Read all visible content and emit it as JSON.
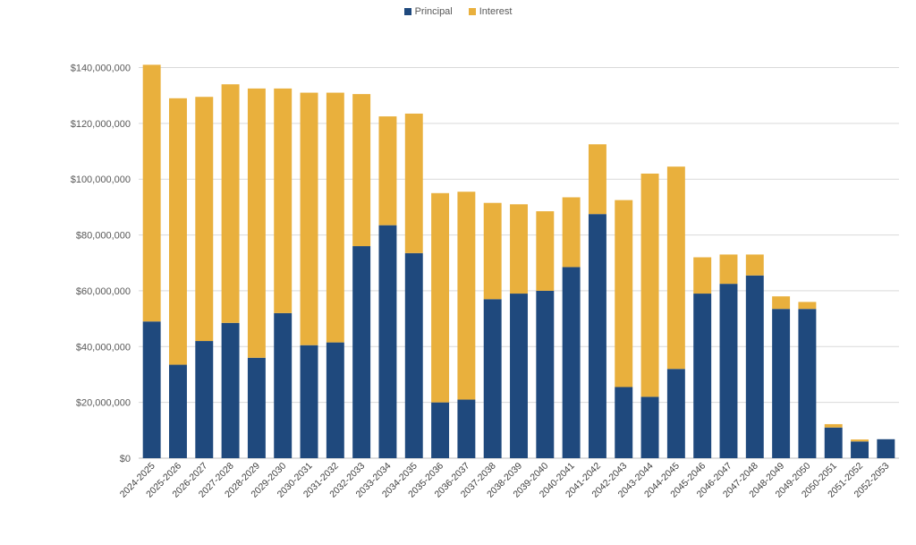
{
  "legend": {
    "principal_label": "Principal",
    "interest_label": "Interest"
  },
  "colors": {
    "principal": "#1F497D",
    "interest": "#E9B03D",
    "grid": "#D9D9D9",
    "axis": "#BFBFBF"
  },
  "chart_data": {
    "type": "bar",
    "stacked": true,
    "title": "",
    "xlabel": "",
    "ylabel": "",
    "ylim": [
      0,
      140000000
    ],
    "ytick_values": [
      0,
      20000000,
      40000000,
      60000000,
      80000000,
      100000000,
      120000000,
      140000000
    ],
    "ytick_labels": [
      "$0",
      "$20,000,000",
      "$40,000,000",
      "$60,000,000",
      "$80,000,000",
      "$100,000,000",
      "$120,000,000",
      "$140,000,000"
    ],
    "grid": true,
    "legend_position": "top",
    "categories": [
      "2024-2025",
      "2025-2026",
      "2026-2027",
      "2027-2028",
      "2028-2029",
      "2029-2030",
      "2030-2031",
      "2031-2032",
      "2032-2033",
      "2033-2034",
      "2034-2035",
      "2035-2036",
      "2036-2037",
      "2037-2038",
      "2038-2039",
      "2039-2040",
      "2040-2041",
      "2041-2042",
      "2042-2043",
      "2043-2044",
      "2044-2045",
      "2045-2046",
      "2046-2047",
      "2047-2048",
      "2048-2049",
      "2049-2050",
      "2050-2051",
      "2051-2052",
      "2052-2053"
    ],
    "series": [
      {
        "name": "Principal",
        "values": [
          49000000,
          33500000,
          42000000,
          48500000,
          36000000,
          52000000,
          40500000,
          41500000,
          76000000,
          83500000,
          73500000,
          20000000,
          21000000,
          57000000,
          59000000,
          60000000,
          68500000,
          87500000,
          25500000,
          22000000,
          32000000,
          59000000,
          62500000,
          65500000,
          53500000,
          53500000,
          11000000,
          6000000,
          6800000
        ]
      },
      {
        "name": "Interest",
        "values": [
          92000000,
          95500000,
          87500000,
          85500000,
          96500000,
          80500000,
          90500000,
          89500000,
          54500000,
          39000000,
          50000000,
          75000000,
          74500000,
          34500000,
          32000000,
          28500000,
          25000000,
          25000000,
          67000000,
          80000000,
          72500000,
          13000000,
          10500000,
          7500000,
          4500000,
          2500000,
          1200000,
          700000,
          0
        ]
      }
    ]
  }
}
